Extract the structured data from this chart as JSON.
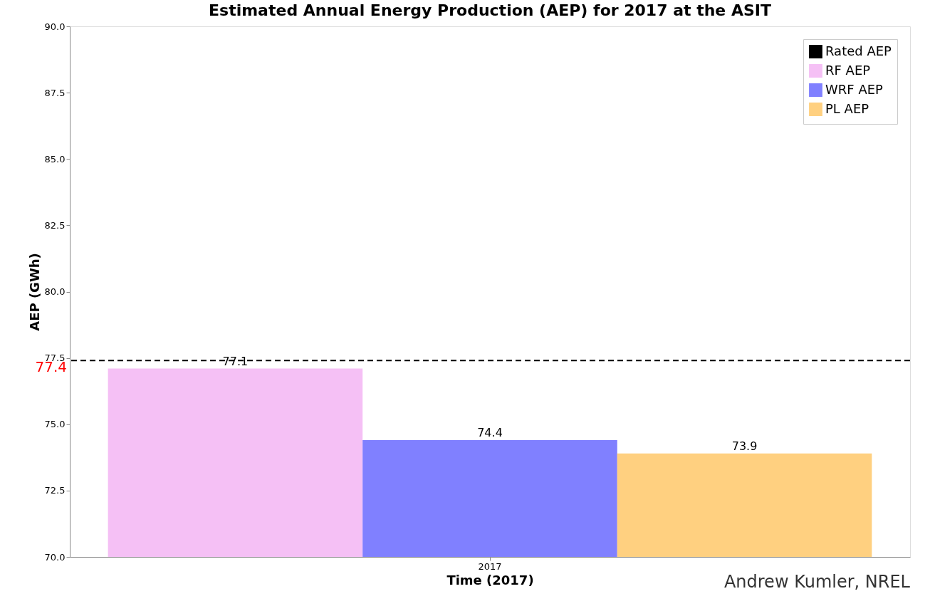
{
  "chart_data": {
    "type": "bar",
    "title": "Estimated Annual Energy Production (AEP) for 2017 at the ASIT",
    "xlabel": "Time (2017)",
    "ylabel": "AEP (GWh)",
    "categories": [
      "2017"
    ],
    "series": [
      {
        "name": "RF AEP",
        "color": "#f5c0f5",
        "values": [
          77.1
        ]
      },
      {
        "name": "WRF AEP",
        "color": "#8080ff",
        "values": [
          74.4
        ]
      },
      {
        "name": "PL AEP",
        "color": "#ffd080",
        "values": [
          73.9
        ]
      }
    ],
    "ylim": [
      70,
      90
    ],
    "yticks": [
      {
        "value": 70,
        "label": "70.0"
      },
      {
        "value": 72.5,
        "label": "72.5"
      },
      {
        "value": 75,
        "label": "75.0"
      },
      {
        "value": 77.5,
        "label": "77.5"
      },
      {
        "value": 80,
        "label": "80.0"
      },
      {
        "value": 82.5,
        "label": "82.5"
      },
      {
        "value": 85,
        "label": "85.0"
      },
      {
        "value": 87.5,
        "label": "87.5"
      },
      {
        "value": 90,
        "label": "90.0"
      }
    ],
    "ref_lines": [
      {
        "axis": "y",
        "value": 77.4,
        "label": "Rated AEP",
        "color": "#000000",
        "line_style": "dashed"
      }
    ],
    "annotations": [
      "77.4",
      "Andrew Kumler, NREL"
    ],
    "data_labels": true,
    "grid": false,
    "legend": "top right"
  }
}
